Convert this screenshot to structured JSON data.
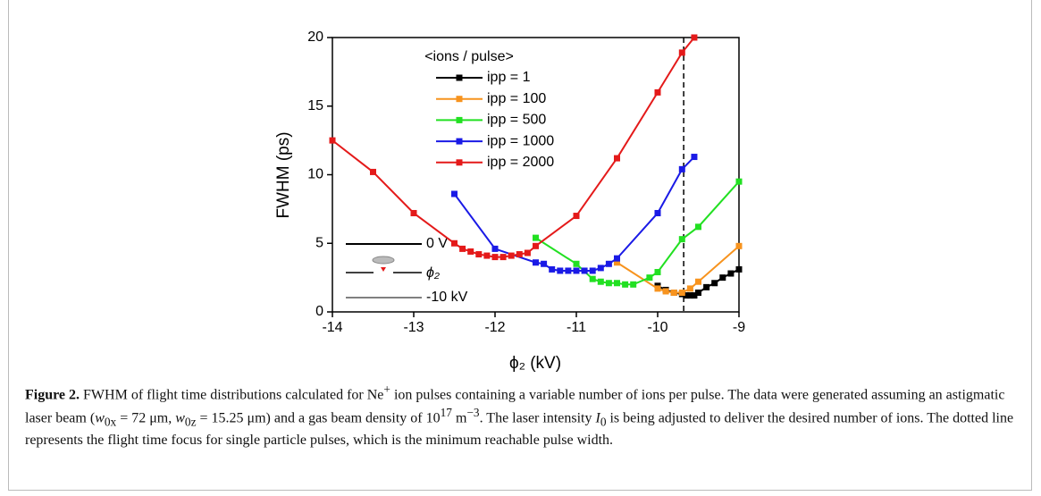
{
  "chart_data": {
    "type": "line",
    "x_label": "ϕ₂ (kV)",
    "y_label": "FWHM (ps)",
    "xlim": [
      -14,
      -9
    ],
    "xticks": [
      -14,
      -13,
      -12,
      -11,
      -10,
      -9
    ],
    "ylim": [
      0,
      20
    ],
    "yticks": [
      0,
      5,
      10,
      15,
      20
    ],
    "legend_title": "<ions / pulse>",
    "vline": -9.68,
    "series": [
      {
        "name": "ipp = 1",
        "color": "#000000",
        "x": [
          -10,
          -9.9,
          -9.8,
          -9.7,
          -9.65,
          -9.6,
          -9.55,
          -9.5,
          -9.4,
          -9.3,
          -9.2,
          -9.1,
          -9.0
        ],
        "values": [
          1.9,
          1.6,
          1.4,
          1.3,
          1.2,
          1.2,
          1.2,
          1.4,
          1.8,
          2.1,
          2.5,
          2.8,
          3.1
        ]
      },
      {
        "name": "ipp = 100",
        "color": "#f7931e",
        "x": [
          -10.5,
          -10,
          -9.9,
          -9.8,
          -9.7,
          -9.6,
          -9.5,
          -9.0
        ],
        "values": [
          3.6,
          1.7,
          1.5,
          1.4,
          1.4,
          1.7,
          2.2,
          4.8
        ]
      },
      {
        "name": "ipp = 500",
        "color": "#22e022",
        "x": [
          -11.5,
          -11,
          -10.8,
          -10.7,
          -10.6,
          -10.5,
          -10.4,
          -10.3,
          -10.1,
          -10,
          -9.7,
          -9.5,
          -9.0
        ],
        "values": [
          5.4,
          3.5,
          2.4,
          2.2,
          2.1,
          2.1,
          2.0,
          2.0,
          2.5,
          2.9,
          5.3,
          6.2,
          9.5
        ]
      },
      {
        "name": "ipp = 1000",
        "color": "#1a1ae6",
        "x": [
          -12.5,
          -12,
          -11.5,
          -11.4,
          -11.3,
          -11.2,
          -11.1,
          -11,
          -10.9,
          -10.8,
          -10.7,
          -10.6,
          -10.5,
          -10,
          -9.7,
          -9.55
        ],
        "values": [
          8.6,
          4.6,
          3.6,
          3.5,
          3.1,
          3.0,
          3.0,
          3.0,
          3.0,
          3.0,
          3.2,
          3.5,
          3.9,
          7.2,
          10.4,
          11.3
        ]
      },
      {
        "name": "ipp = 2000",
        "color": "#e41a1a",
        "x": [
          -14,
          -13.5,
          -13,
          -12.5,
          -12.4,
          -12.3,
          -12.2,
          -12.1,
          -12,
          -11.9,
          -11.8,
          -11.7,
          -11.6,
          -11.5,
          -11,
          -10.5,
          -10,
          -9.7,
          -9.55
        ],
        "values": [
          12.5,
          10.2,
          7.2,
          5.0,
          4.6,
          4.4,
          4.2,
          4.1,
          4.0,
          4.0,
          4.1,
          4.2,
          4.3,
          4.8,
          7.0,
          11.2,
          16.0,
          18.9,
          20
        ]
      }
    ],
    "inset_labels": [
      "0 V",
      "ϕ₂",
      "-10 kV"
    ]
  },
  "caption": {
    "parts": [
      "Figure 2.",
      " FWHM of flight time distributions calculated for Ne",
      "+",
      " ion pulses containing a variable number of ions per pulse. The data were generated assuming an astigmatic laser beam (",
      "w",
      "0x",
      " = 72 μm, ",
      "w",
      "0z",
      " = 15.25 μm) and a gas beam density of 10",
      "17",
      " m",
      "−3",
      ". The laser intensity ",
      "I",
      "0",
      " is being adjusted to deliver the desired number of ions. The dotted line represents the flight time focus for single particle pulses, which is the minimum reachable pulse width."
    ]
  }
}
